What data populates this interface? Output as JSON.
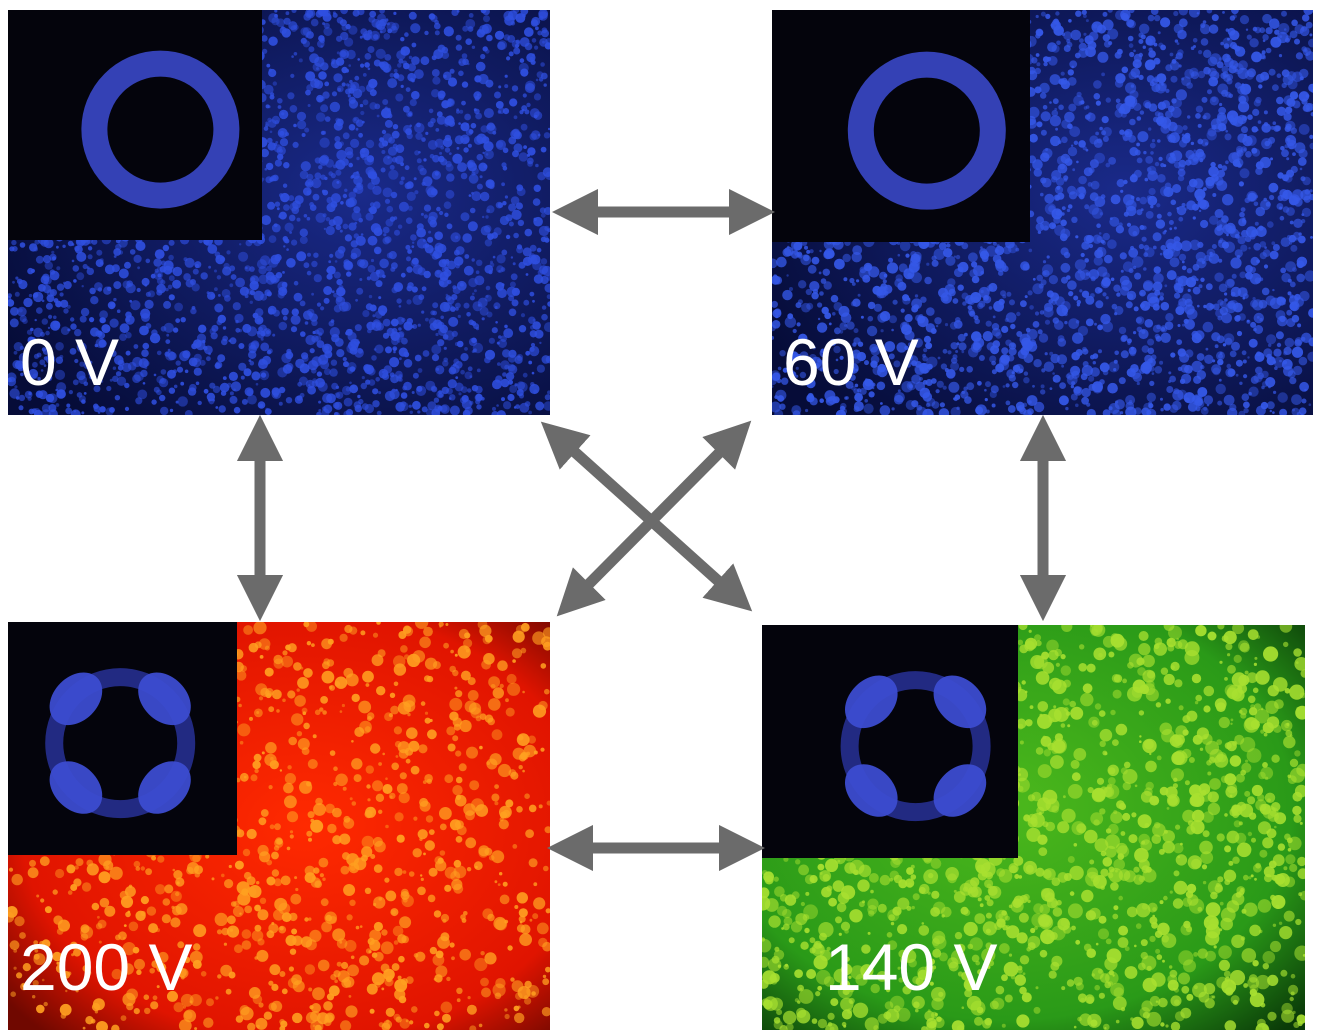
{
  "panels": [
    {
      "label": "0 V"
    },
    {
      "label": "60 V"
    },
    {
      "label": "200 V"
    },
    {
      "label": "140 V"
    }
  ]
}
